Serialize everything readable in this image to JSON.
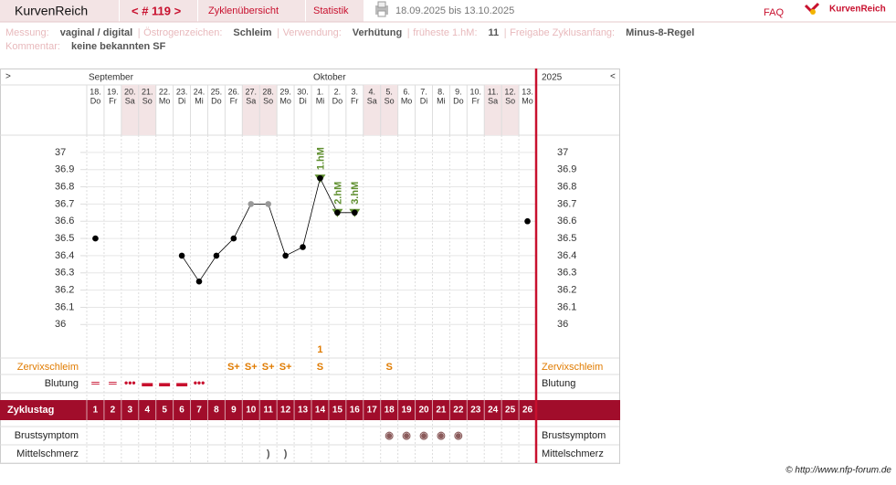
{
  "header": {
    "app": "KurvenReich",
    "cycle_nav": "< # 119 >",
    "tabs": [
      "Zyklenübersicht",
      "Statistik"
    ],
    "date_range": "18.09.2025 bis 13.10.2025",
    "faq": "FAQ",
    "logo": "KurvenReich"
  },
  "info": {
    "fields": [
      {
        "label": "Messung:",
        "value": "vaginal / digital"
      },
      {
        "label": "Östrogenzeichen:",
        "value": "Schleim"
      },
      {
        "label": "Verwendung:",
        "value": "Verhütung"
      },
      {
        "label": "früheste 1.hM:",
        "value": "11"
      },
      {
        "label": "Freigabe Zyklusanfang:",
        "value": "Minus-8-Regel"
      }
    ],
    "comment_label": "Kommentar:",
    "comment": "keine bekannten SF"
  },
  "chart_data": {
    "type": "line",
    "nav_prev": ">",
    "nav_next": "<",
    "year": "2025",
    "month_labels": [
      "September",
      null,
      null,
      null,
      null,
      null,
      null,
      null,
      null,
      null,
      null,
      null,
      null,
      "Oktober",
      null,
      null,
      null,
      null,
      null,
      null,
      null,
      null,
      null,
      null,
      null,
      null
    ],
    "dates": [
      "18.",
      "19.",
      "20.",
      "21.",
      "22.",
      "23.",
      "24.",
      "25.",
      "26.",
      "27.",
      "28.",
      "29.",
      "30.",
      "1.",
      "2.",
      "3.",
      "4.",
      "5.",
      "6.",
      "7.",
      "8.",
      "9.",
      "10.",
      "11.",
      "12.",
      "13."
    ],
    "weekdays": [
      "Do",
      "Fr",
      "Sa",
      "So",
      "Mo",
      "Di",
      "Mi",
      "Do",
      "Fr",
      "Sa",
      "So",
      "Mo",
      "Di",
      "Mi",
      "Do",
      "Fr",
      "Sa",
      "So",
      "Mo",
      "Di",
      "Mi",
      "Do",
      "Fr",
      "Sa",
      "So",
      "Mo"
    ],
    "values": [
      36.5,
      null,
      null,
      null,
      null,
      36.4,
      36.25,
      36.4,
      36.5,
      36.7,
      36.7,
      36.4,
      36.45,
      36.85,
      36.65,
      36.65,
      null,
      null,
      null,
      null,
      null,
      null,
      null,
      null,
      null,
      36.6
    ],
    "color": "#000000",
    "point_colors": [
      "#000000",
      null,
      null,
      null,
      null,
      "#000000",
      "#000000",
      "#000000",
      "#000000",
      "#999999",
      "#999999",
      "#000000",
      "#000000",
      "#000000",
      "#000000",
      "#000000",
      null,
      null,
      null,
      null,
      null,
      null,
      null,
      null,
      null,
      "#000000"
    ],
    "hm_labels": [
      null,
      null,
      null,
      null,
      null,
      null,
      null,
      null,
      null,
      null,
      null,
      null,
      null,
      "1.hM",
      "2.hM",
      "3.hM",
      null,
      null,
      null,
      null,
      null,
      null,
      null,
      null,
      null,
      null
    ],
    "hm_color": "#5f8f2f",
    "ylim": [
      35.8,
      37.1
    ],
    "yticks": [
      36,
      36.1,
      36.2,
      36.3,
      36.4,
      36.5,
      36.6,
      36.7,
      36.8,
      36.9,
      37
    ],
    "peak": {
      "color": "#e07b00",
      "values": [
        null,
        null,
        null,
        null,
        null,
        null,
        null,
        null,
        null,
        null,
        null,
        null,
        null,
        "1",
        null,
        null,
        null,
        null,
        null,
        null,
        null,
        null,
        null,
        null,
        null,
        null
      ]
    },
    "cervix": {
      "label": "Zervixschleim",
      "color": "#e07b00",
      "values": [
        null,
        null,
        null,
        null,
        null,
        null,
        null,
        null,
        "S+",
        "S+",
        "S+",
        "S+",
        null,
        "S",
        null,
        null,
        null,
        "S",
        null,
        null,
        null,
        null,
        null,
        null,
        null,
        null
      ]
    },
    "bleeding": {
      "label": "Blutung",
      "color": "#c8102e",
      "values": [
        "═",
        "═",
        "•••",
        "▬",
        "▬",
        "▬",
        "•••",
        null,
        null,
        null,
        null,
        null,
        null,
        null,
        null,
        null,
        null,
        null,
        null,
        null,
        null,
        null,
        null,
        null,
        null,
        null
      ]
    },
    "cycle_day_label": "Zyklustag",
    "cycle_days": [
      1,
      2,
      3,
      4,
      5,
      6,
      7,
      8,
      9,
      10,
      11,
      12,
      13,
      14,
      15,
      16,
      17,
      18,
      19,
      20,
      21,
      22,
      23,
      24,
      25,
      26
    ],
    "breast": {
      "label": "Brustsymptom",
      "color": "#8a5a5a",
      "values": [
        null,
        null,
        null,
        null,
        null,
        null,
        null,
        null,
        null,
        null,
        null,
        null,
        null,
        null,
        null,
        null,
        null,
        "◉",
        "◉",
        "◉",
        "◉",
        "◉",
        null,
        null,
        null,
        null
      ]
    },
    "pain": {
      "label": "Mittelschmerz",
      "color": "#555555",
      "values": [
        null,
        null,
        null,
        null,
        null,
        null,
        null,
        null,
        null,
        null,
        ")",
        ")",
        null,
        null,
        null,
        null,
        null,
        null,
        null,
        null,
        null,
        null,
        null,
        null,
        null,
        null
      ]
    }
  },
  "footer": "© http://www.nfp-forum.de"
}
